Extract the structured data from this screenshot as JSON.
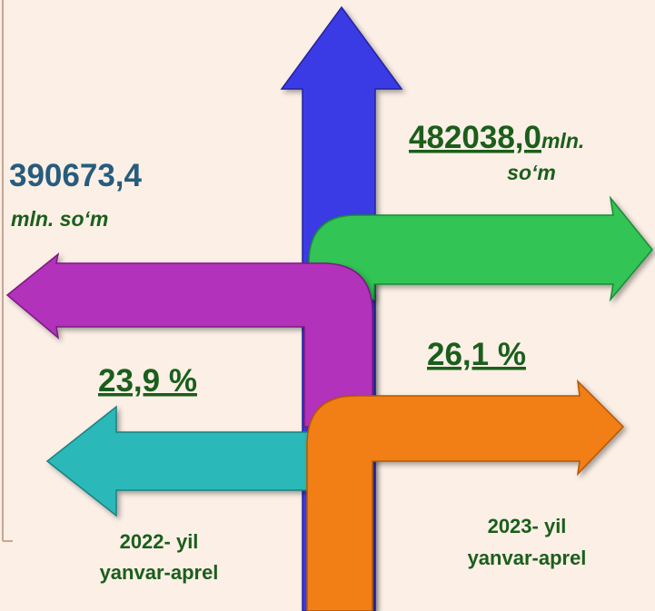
{
  "left": {
    "value": "390673,4",
    "unit": "mln. so‘m",
    "share": "23,9 %",
    "period": [
      "2022- yil",
      "yanvar-aprel"
    ]
  },
  "right": {
    "value": "482038,0",
    "unit": "mln.",
    "unit_line2": "so‘m",
    "share": "26,1 %",
    "period": [
      "2023- yil",
      "yanvar-aprel"
    ]
  }
}
